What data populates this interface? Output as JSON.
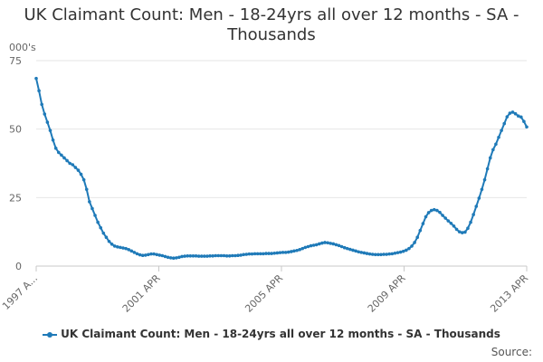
{
  "chart_data": {
    "type": "line",
    "title": "UK Claimant Count: Men - 18-24yrs all over 12 months - SA - Thousands",
    "ylabel": "000's",
    "xlabel": "",
    "ylim": [
      0,
      75
    ],
    "yticks": [
      0,
      25,
      50,
      75
    ],
    "xticks": [
      "1997 A...",
      "2001 APR",
      "2005 APR",
      "2009 APR",
      "2013 APR"
    ],
    "x_start": "1997 APR",
    "x_end": "2013 APR",
    "grid": true,
    "legend_position": "bottom",
    "color": "#1f7ab8",
    "series": [
      {
        "name": "UK Claimant Count: Men - 18-24yrs all over 12 months - SA - Thousands",
        "values": [
          68.5,
          64,
          59,
          55.5,
          52.5,
          49.5,
          46,
          43,
          41.5,
          40.5,
          39.5,
          38.5,
          37.5,
          37,
          36,
          35,
          33.5,
          31.5,
          28,
          23.5,
          21,
          18.5,
          16,
          14,
          12,
          10.5,
          9,
          8,
          7.3,
          7,
          6.8,
          6.6,
          6.4,
          6,
          5.5,
          5,
          4.5,
          4.1,
          3.9,
          4,
          4.2,
          4.4,
          4.4,
          4.2,
          4,
          3.8,
          3.5,
          3.2,
          3,
          2.9,
          3,
          3.2,
          3.5,
          3.6,
          3.7,
          3.7,
          3.7,
          3.7,
          3.6,
          3.6,
          3.6,
          3.6,
          3.7,
          3.7,
          3.8,
          3.8,
          3.8,
          3.8,
          3.7,
          3.7,
          3.8,
          3.8,
          3.9,
          4,
          4.2,
          4.3,
          4.4,
          4.4,
          4.5,
          4.5,
          4.5,
          4.5,
          4.6,
          4.6,
          4.6,
          4.7,
          4.8,
          4.9,
          5,
          5,
          5.1,
          5.3,
          5.5,
          5.7,
          6,
          6.4,
          6.8,
          7.1,
          7.4,
          7.6,
          7.8,
          8.1,
          8.4,
          8.6,
          8.5,
          8.3,
          8.1,
          7.8,
          7.5,
          7.1,
          6.7,
          6.4,
          6.1,
          5.8,
          5.5,
          5.2,
          5,
          4.8,
          4.6,
          4.4,
          4.3,
          4.2,
          4.2,
          4.2,
          4.3,
          4.3,
          4.4,
          4.5,
          4.7,
          4.9,
          5.1,
          5.4,
          5.8,
          6.4,
          7.3,
          8.6,
          10.5,
          13,
          15.5,
          18,
          19.5,
          20.3,
          20.6,
          20.3,
          19.6,
          18.5,
          17.5,
          16.5,
          15.6,
          14.6,
          13.4,
          12.5,
          12.2,
          12.4,
          13.8,
          16,
          18.8,
          21.8,
          24.8,
          28,
          31.5,
          35.5,
          39.5,
          42.5,
          44.5,
          47,
          49.5,
          52,
          54.5,
          55.8,
          56.2,
          55.6,
          54.8,
          54.4,
          52.8,
          50.8
        ]
      }
    ]
  },
  "source_label": "Source:"
}
